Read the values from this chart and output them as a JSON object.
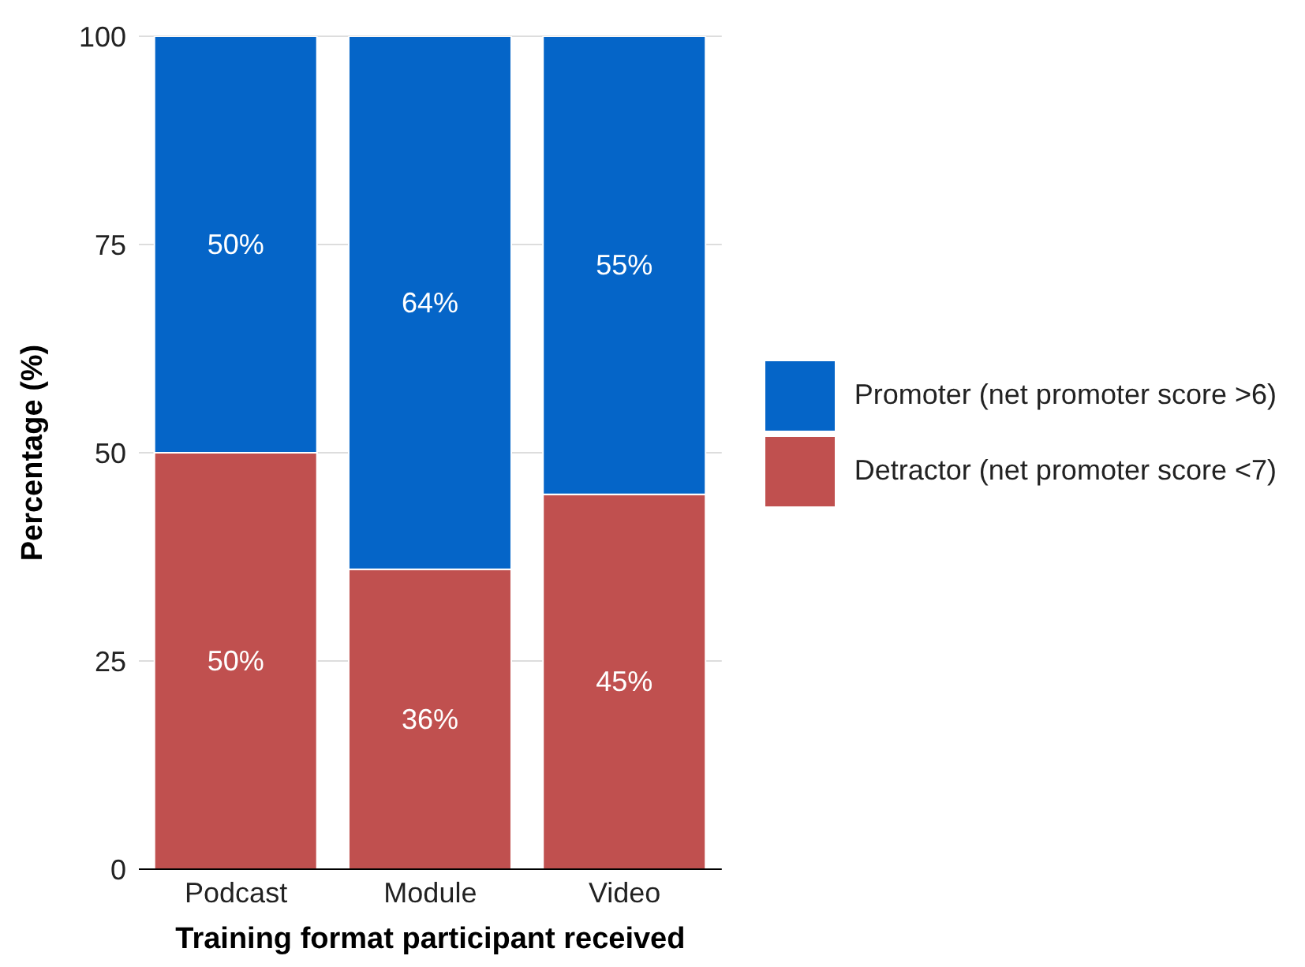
{
  "chart_data": {
    "type": "bar",
    "stacked": true,
    "xlabel": "Training format participant received",
    "ylabel": "Percentage (%)",
    "categories": [
      "Podcast",
      "Module",
      "Video"
    ],
    "series": [
      {
        "name": "Detractor (net promoter score <7)",
        "color": "#c0504f",
        "values": [
          50,
          36,
          45
        ],
        "value_labels": [
          "50%",
          "36%",
          "45%"
        ]
      },
      {
        "name": "Promoter (net promoter score >6)",
        "color": "#0565c8",
        "values": [
          50,
          64,
          55
        ],
        "value_labels": [
          "50%",
          "64%",
          "55%"
        ]
      }
    ],
    "ylim": [
      0,
      100
    ],
    "yticks": [
      0,
      25,
      50,
      75,
      100
    ],
    "grid": "y",
    "legend": "right"
  }
}
